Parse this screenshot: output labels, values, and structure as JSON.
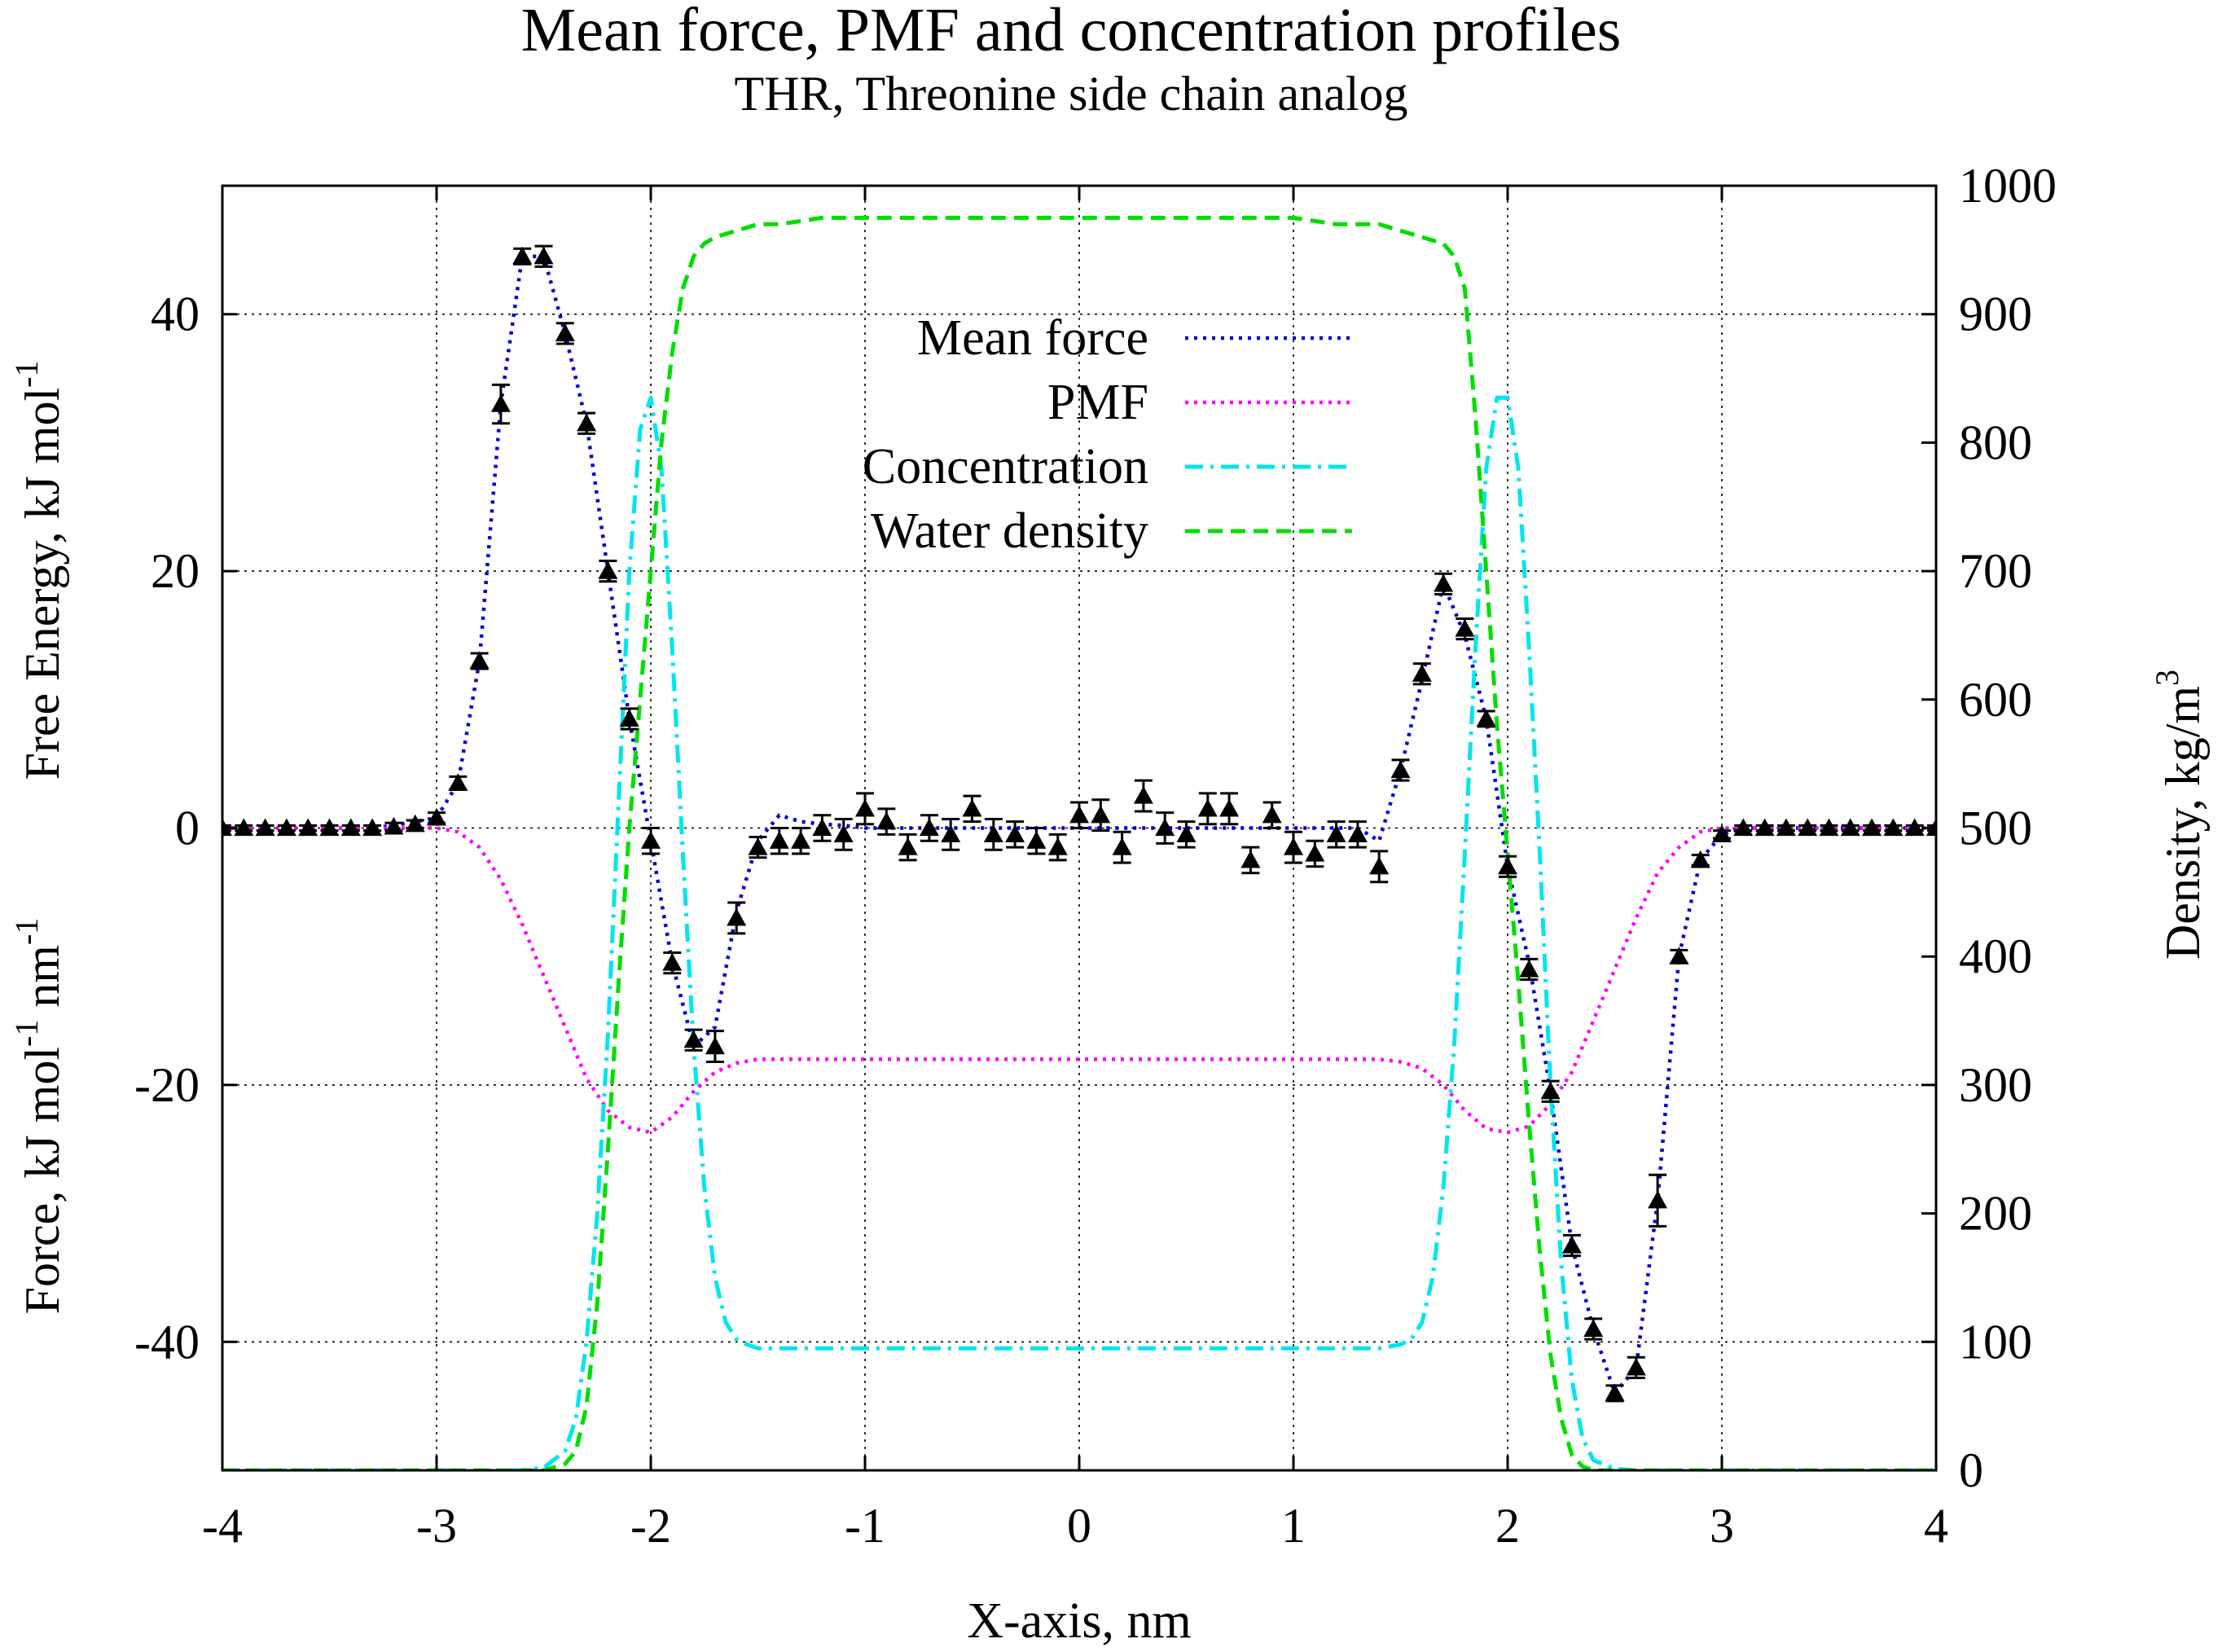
{
  "chart_data": {
    "type": "line",
    "title": "Mean force, PMF and concentration profiles",
    "subtitle": "THR, Threonine side chain analog",
    "xlabel": "X-axis, nm",
    "ylabel_left_top": "Free Energy, kJ mol",
    "ylabel_left_top_sup": "-1",
    "ylabel_left_bottom_a": "Force, kJ mol",
    "ylabel_left_bottom_sup1": "-1",
    "ylabel_left_bottom_b": " nm",
    "ylabel_left_bottom_sup2": "-1",
    "ylabel_right": "Density, kg/m",
    "ylabel_right_sup": "3",
    "xlim": [
      -4,
      4
    ],
    "ylim_left": [
      -50,
      50
    ],
    "ylim_right": [
      0,
      1000
    ],
    "x_ticks": [
      -4,
      -3,
      -2,
      -1,
      0,
      1,
      2,
      3,
      4
    ],
    "x_tick_labels": [
      "-4",
      "-3",
      "-2",
      "-1",
      "0",
      "1",
      "2",
      "3",
      "4"
    ],
    "y_left_ticks": [
      -40,
      -20,
      0,
      20,
      40
    ],
    "y_left_tick_labels": [
      "-40",
      "-20",
      "0",
      "20",
      "40"
    ],
    "y_right_ticks": [
      0,
      100,
      200,
      300,
      400,
      500,
      600,
      700,
      800,
      900,
      1000
    ],
    "y_right_tick_labels": [
      "0",
      "100",
      "200",
      "300",
      "400",
      "500",
      "600",
      "700",
      "800",
      "900",
      "1000"
    ],
    "grid": true,
    "legend_position": "top-center",
    "series": [
      {
        "name": "Mean force",
        "style": "dotted",
        "color": "#0000cc",
        "axis": "left",
        "x": [
          -4.0,
          -3.9,
          -3.8,
          -3.7,
          -3.6,
          -3.5,
          -3.4,
          -3.3,
          -3.2,
          -3.1,
          -3.0,
          -2.9,
          -2.8,
          -2.7,
          -2.6,
          -2.5,
          -2.4,
          -2.3,
          -2.2,
          -2.1,
          -2.0,
          -1.9,
          -1.8,
          -1.7,
          -1.6,
          -1.5,
          -1.4,
          -1.3,
          -1.2,
          -1.1,
          -1.0,
          -0.5,
          0.0,
          0.5,
          1.0,
          1.2,
          1.3,
          1.4,
          1.5,
          1.6,
          1.7,
          1.8,
          1.9,
          2.0,
          2.1,
          2.2,
          2.3,
          2.4,
          2.5,
          2.6,
          2.7,
          2.8,
          2.9,
          3.0,
          3.1,
          3.2,
          3.3,
          3.4,
          3.5,
          3.6,
          3.7,
          3.8,
          3.9,
          4.0
        ],
        "y": [
          0,
          0,
          0,
          0,
          0,
          0,
          0,
          0,
          0.2,
          0.5,
          0.8,
          3.5,
          13,
          33,
          44.5,
          44.5,
          38.5,
          31.5,
          20,
          8.5,
          -1,
          -10.5,
          -17,
          -15.5,
          -6.5,
          -1,
          1,
          0.5,
          0.3,
          0.2,
          0,
          0,
          0,
          0,
          0,
          0,
          0,
          -1,
          4.5,
          11.5,
          19,
          15,
          8.5,
          -3,
          -10.5,
          -20.5,
          -32.5,
          -39,
          -44,
          -42,
          -29,
          -10,
          -2.5,
          -0.5,
          0,
          0,
          0,
          0,
          0,
          0,
          0,
          0,
          0,
          0
        ]
      },
      {
        "name": "PMF",
        "style": "dotted",
        "color": "#ff00ff",
        "axis": "left",
        "x": [
          -4.0,
          -3.5,
          -3.0,
          -2.9,
          -2.8,
          -2.7,
          -2.6,
          -2.5,
          -2.4,
          -2.3,
          -2.2,
          -2.1,
          -2.0,
          -1.9,
          -1.8,
          -1.7,
          -1.6,
          -1.5,
          -1.4,
          -1.0,
          0.0,
          1.0,
          1.4,
          1.5,
          1.6,
          1.7,
          1.8,
          1.9,
          2.0,
          2.1,
          2.2,
          2.3,
          2.4,
          2.5,
          2.6,
          2.7,
          2.8,
          2.9,
          3.0,
          3.5,
          4.0
        ],
        "y": [
          0,
          0,
          0,
          -0.3,
          -1.5,
          -4,
          -7.5,
          -11.5,
          -15.5,
          -19.5,
          -22,
          -23.3,
          -23.7,
          -22.5,
          -20.5,
          -19,
          -18.3,
          -18,
          -18,
          -18,
          -18,
          -18,
          -18,
          -18.2,
          -18.7,
          -20,
          -22,
          -23.4,
          -23.7,
          -23.2,
          -21.5,
          -19,
          -15,
          -11,
          -7,
          -3.5,
          -1.5,
          -0.3,
          0,
          0,
          0
        ]
      },
      {
        "name": "Concentration",
        "style": "dash-dot",
        "color": "#00e5ee",
        "axis": "right",
        "x": [
          -4.0,
          -2.6,
          -2.5,
          -2.4,
          -2.35,
          -2.3,
          -2.25,
          -2.2,
          -2.15,
          -2.1,
          -2.05,
          -2.0,
          -1.95,
          -1.9,
          -1.85,
          -1.8,
          -1.75,
          -1.7,
          -1.65,
          -1.6,
          -1.55,
          -1.5,
          -1.4,
          1.4,
          1.5,
          1.55,
          1.6,
          1.65,
          1.7,
          1.75,
          1.8,
          1.85,
          1.9,
          1.95,
          2.0,
          2.05,
          2.1,
          2.15,
          2.2,
          2.25,
          2.3,
          2.35,
          2.4,
          2.5,
          2.6,
          4.0
        ],
        "y": [
          0,
          0,
          2,
          15,
          40,
          100,
          200,
          340,
          520,
          700,
          810,
          835,
          780,
          640,
          480,
          330,
          220,
          150,
          115,
          102,
          98,
          95,
          95,
          95,
          98,
          102,
          115,
          150,
          220,
          330,
          480,
          640,
          780,
          835,
          835,
          780,
          640,
          480,
          300,
          160,
          70,
          25,
          8,
          1,
          0,
          0
        ]
      },
      {
        "name": "Water density",
        "style": "dashed",
        "color": "#00dd00",
        "axis": "right",
        "x": [
          -4.0,
          -2.5,
          -2.4,
          -2.35,
          -2.3,
          -2.25,
          -2.2,
          -2.15,
          -2.1,
          -2.05,
          -2.0,
          -1.95,
          -1.9,
          -1.85,
          -1.8,
          -1.75,
          -1.7,
          -1.6,
          -1.5,
          -1.4,
          -1.2,
          -1.0,
          -0.5,
          0.0,
          0.5,
          1.0,
          1.2,
          1.4,
          1.5,
          1.6,
          1.7,
          1.75,
          1.8,
          1.85,
          1.9,
          1.95,
          2.0,
          2.05,
          2.1,
          2.15,
          2.2,
          2.25,
          2.3,
          2.35,
          2.4,
          2.5,
          4.0
        ],
        "y": [
          0,
          0,
          5,
          15,
          50,
          130,
          250,
          380,
          500,
          600,
          700,
          800,
          870,
          920,
          945,
          955,
          960,
          965,
          970,
          970,
          975,
          975,
          975,
          975,
          975,
          975,
          970,
          970,
          965,
          960,
          955,
          945,
          920,
          820,
          700,
          580,
          480,
          380,
          270,
          170,
          90,
          40,
          12,
          3,
          0,
          0,
          0
        ]
      }
    ],
    "mean_force_points": {
      "x": [
        -4.0,
        -3.9,
        -3.8,
        -3.7,
        -3.6,
        -3.5,
        -3.4,
        -3.3,
        -3.2,
        -3.1,
        -3.0,
        -2.9,
        -2.8,
        -2.7,
        -2.6,
        -2.5,
        -2.4,
        -2.3,
        -2.2,
        -2.1,
        -2.0,
        -1.9,
        -1.8,
        -1.7,
        -1.6,
        -1.5,
        -1.4,
        -1.3,
        -1.2,
        -1.1,
        -1.0,
        -0.9,
        -0.8,
        -0.7,
        -0.6,
        -0.5,
        -0.4,
        -0.3,
        -0.2,
        -0.1,
        0.0,
        0.1,
        0.2,
        0.3,
        0.4,
        0.5,
        0.6,
        0.7,
        0.8,
        0.9,
        1.0,
        1.1,
        1.2,
        1.3,
        1.4,
        1.5,
        1.6,
        1.7,
        1.8,
        1.9,
        2.0,
        2.1,
        2.2,
        2.3,
        2.4,
        2.5,
        2.6,
        2.7,
        2.8,
        2.9,
        3.0,
        3.1,
        3.2,
        3.3,
        3.4,
        3.5,
        3.6,
        3.7,
        3.8,
        3.9,
        4.0
      ],
      "y": [
        0,
        0,
        0,
        0,
        0,
        0,
        0,
        0,
        0.1,
        0.3,
        0.8,
        3.5,
        13,
        33,
        44.5,
        44.5,
        38.5,
        31.5,
        20,
        8.5,
        -1,
        -10.5,
        -16.5,
        -17,
        -7,
        -1.5,
        -1,
        -1,
        0,
        -0.5,
        1.5,
        0.5,
        -1.5,
        0,
        -0.5,
        1.5,
        -0.5,
        -0.5,
        -1,
        -1.5,
        1,
        1,
        -1.5,
        2.5,
        0,
        -0.5,
        1.5,
        1.5,
        -2.5,
        1,
        -1.5,
        -2,
        -0.5,
        -0.5,
        -3,
        4.5,
        12,
        19,
        15.5,
        8.5,
        -3,
        -11,
        -20.5,
        -32.5,
        -39,
        -44,
        -42,
        -29,
        -10,
        -2.5,
        -0.5,
        0,
        0,
        0,
        0,
        0,
        0,
        0,
        0,
        0,
        0
      ],
      "err": [
        0.2,
        0.2,
        0.2,
        0.2,
        0.2,
        0.2,
        0.2,
        0.2,
        0.3,
        0.3,
        0.4,
        0.5,
        0.6,
        1.5,
        0.6,
        0.8,
        0.8,
        0.8,
        0.8,
        0.8,
        1.0,
        0.8,
        0.8,
        1.2,
        1.2,
        0.8,
        1.0,
        1.0,
        1.0,
        1.2,
        1.2,
        1.0,
        1.0,
        1.0,
        1.2,
        1.0,
        1.2,
        1.0,
        1.0,
        1.0,
        1.0,
        1.2,
        1.2,
        1.2,
        1.2,
        1.0,
        1.2,
        1.2,
        1.0,
        1.0,
        1.2,
        1.0,
        1.0,
        1.0,
        1.2,
        0.8,
        0.8,
        0.8,
        0.8,
        0.6,
        0.8,
        0.8,
        0.8,
        0.8,
        0.8,
        0.6,
        0.8,
        2.0,
        0.5,
        0.4,
        0.3,
        0.2,
        0.2,
        0.2,
        0.2,
        0.2,
        0.2,
        0.2,
        0.2,
        0.2,
        0.2
      ]
    }
  }
}
